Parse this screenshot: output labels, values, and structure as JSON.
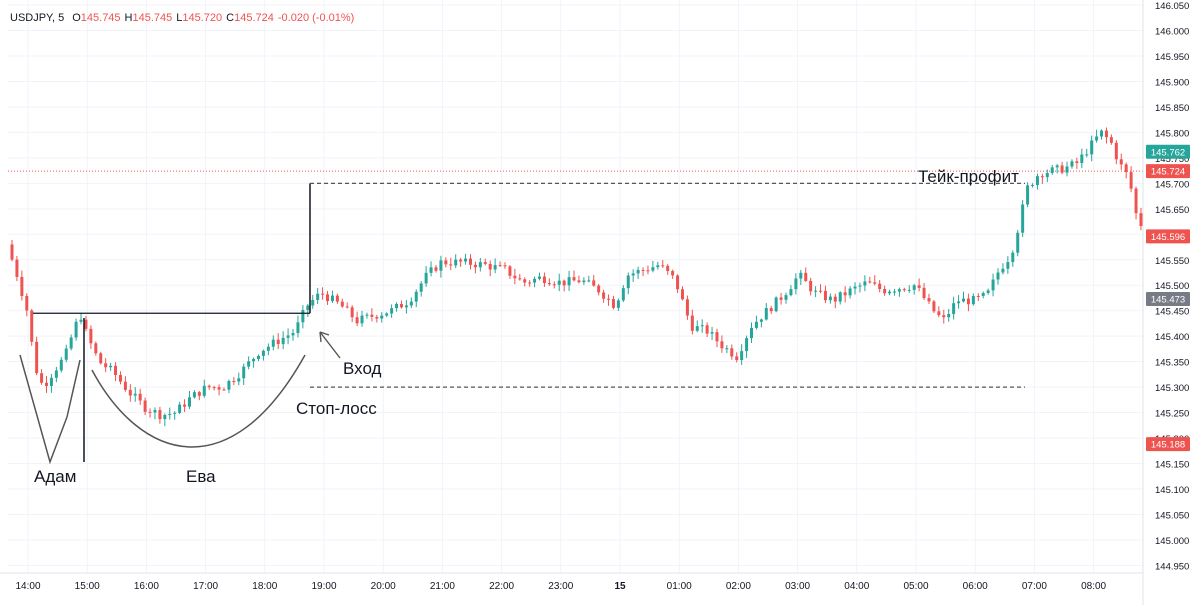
{
  "header": {
    "symbol": "USDJPY, 5",
    "o_label": "O",
    "o_value": "145.745",
    "h_label": "H",
    "h_value": "145.745",
    "l_label": "L",
    "l_value": "145.720",
    "c_label": "C",
    "c_value": "145.724",
    "change": "-0.020 (-0.01%)"
  },
  "colors": {
    "up": "#26a69a",
    "down": "#ef5350",
    "axis_text": "#131722",
    "grid": "#f0f3fa",
    "annotation": "#131722",
    "badge_green": "#26a69a",
    "badge_red": "#ef5350",
    "badge_gray": "#787b86"
  },
  "chart_data": {
    "type": "candlestick",
    "ylim": [
      144.935,
      146.06
    ],
    "y_ticks": [
      "146.050",
      "146.000",
      "145.950",
      "145.900",
      "145.850",
      "145.800",
      "145.750",
      "145.700",
      "145.650",
      "145.600",
      "145.550",
      "145.500",
      "145.450",
      "145.400",
      "145.350",
      "145.300",
      "145.250",
      "145.200",
      "145.150",
      "145.100",
      "145.050",
      "145.000",
      "144.950"
    ],
    "x_ticks": [
      "14:00",
      "15:00",
      "16:00",
      "17:00",
      "18:00",
      "19:00",
      "20:00",
      "21:00",
      "22:00",
      "23:00",
      "15",
      "01:00",
      "02:00",
      "03:00",
      "04:00",
      "05:00",
      "06:00",
      "07:00",
      "08:00"
    ],
    "price_badges": [
      {
        "label": "145.762",
        "value": 145.762,
        "color": "green"
      },
      {
        "label": "145.724",
        "value": 145.724,
        "color": "red"
      },
      {
        "label": "145.596",
        "value": 145.596,
        "color": "red"
      },
      {
        "label": "145.473",
        "value": 145.473,
        "color": "gray"
      },
      {
        "label": "145.188",
        "value": 145.188,
        "color": "red"
      }
    ],
    "current_price": 145.724,
    "annotations": {
      "adam": "Адам",
      "eva": "Ева",
      "entry": "Вход",
      "stop_loss": "Стоп-лосс",
      "take_profit": "Тейк-профит"
    },
    "levels": {
      "neckline": 145.445,
      "take_profit": 145.7,
      "stop_loss": 145.3
    }
  }
}
